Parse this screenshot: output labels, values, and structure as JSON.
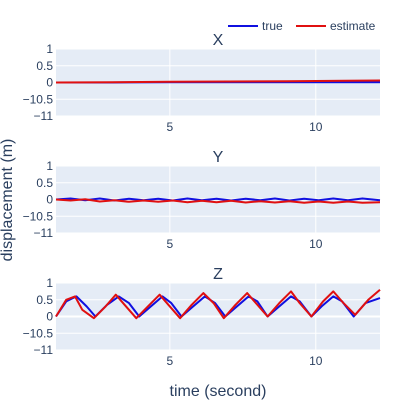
{
  "legend": [
    {
      "label": "true",
      "color": "#1010e0"
    },
    {
      "label": "estimate",
      "color": "#e01010"
    }
  ],
  "chart_data": {
    "type": "line",
    "ylabel": "displacement (m)",
    "xlabel": "time (second)",
    "grid": true,
    "legend_position": "top-right",
    "xlim": [
      1.1,
      12.2
    ],
    "ylim": [
      -1,
      1
    ],
    "xticks": [
      5,
      10
    ],
    "yticks": [
      1,
      0.5,
      0,
      -0.5,
      -1
    ],
    "panels": [
      {
        "title": "X",
        "series": [
          {
            "name": "true",
            "color": "#1010e0",
            "x": [
              1.1,
              3,
              5,
              7,
              9,
              11,
              12.2
            ],
            "y": [
              0,
              0,
              0.01,
              0.01,
              0.01,
              0.01,
              0.01
            ]
          },
          {
            "name": "estimate",
            "color": "#e01010",
            "x": [
              1.1,
              3,
              5,
              7,
              9,
              11,
              12.2
            ],
            "y": [
              0,
              0.01,
              0.02,
              0.03,
              0.04,
              0.05,
              0.06
            ]
          }
        ]
      },
      {
        "title": "Y",
        "series": [
          {
            "name": "true",
            "color": "#1010e0",
            "x": [
              1.1,
              1.6,
              2.1,
              2.6,
              3.1,
              3.6,
              4.1,
              4.6,
              5.1,
              5.6,
              6.1,
              6.6,
              7.1,
              7.6,
              8.1,
              8.6,
              9.1,
              9.6,
              10.1,
              10.6,
              11.1,
              11.6,
              12.2
            ],
            "y": [
              0,
              0.03,
              -0.02,
              0.03,
              -0.03,
              0.02,
              -0.02,
              0.02,
              -0.03,
              0.03,
              -0.02,
              0.02,
              -0.03,
              0.02,
              -0.02,
              0.03,
              -0.03,
              0.02,
              -0.02,
              0.03,
              -0.02,
              0.03,
              -0.02
            ]
          },
          {
            "name": "estimate",
            "color": "#e01010",
            "x": [
              1.1,
              1.6,
              2.1,
              2.6,
              3.1,
              3.6,
              4.1,
              4.6,
              5.1,
              5.6,
              6.1,
              6.6,
              7.1,
              7.6,
              8.1,
              8.6,
              9.1,
              9.6,
              10.1,
              10.6,
              11.1,
              11.6,
              12.2
            ],
            "y": [
              0,
              -0.03,
              0.01,
              -0.06,
              -0.02,
              -0.07,
              -0.03,
              -0.07,
              -0.03,
              -0.08,
              -0.04,
              -0.08,
              -0.04,
              -0.09,
              -0.05,
              -0.09,
              -0.05,
              -0.1,
              -0.06,
              -0.1,
              -0.06,
              -0.1,
              -0.08
            ]
          }
        ]
      },
      {
        "title": "Z",
        "series": [
          {
            "name": "true",
            "color": "#1010e0",
            "x": [
              1.1,
              1.45,
              1.8,
              2.15,
              2.45,
              2.85,
              3.25,
              3.6,
              3.95,
              4.35,
              4.75,
              5.05,
              5.4,
              5.8,
              6.2,
              6.55,
              6.9,
              7.3,
              7.7,
              8.0,
              8.35,
              8.75,
              9.15,
              9.45,
              9.85,
              10.2,
              10.6,
              10.9,
              11.3,
              11.7,
              12.2
            ],
            "y": [
              0,
              0.45,
              0.6,
              0.3,
              0,
              0.35,
              0.6,
              0.4,
              0,
              0.3,
              0.6,
              0.4,
              0,
              0.3,
              0.6,
              0.4,
              0,
              0.3,
              0.6,
              0.45,
              0,
              0.3,
              0.6,
              0.45,
              0,
              0.3,
              0.6,
              0.45,
              0,
              0.4,
              0.55
            ]
          },
          {
            "name": "estimate",
            "color": "#e01010",
            "x": [
              1.1,
              1.45,
              1.75,
              2.0,
              2.4,
              2.8,
              3.15,
              3.45,
              3.85,
              4.25,
              4.65,
              4.95,
              5.35,
              5.75,
              6.15,
              6.5,
              6.85,
              7.25,
              7.65,
              7.95,
              8.35,
              8.75,
              9.15,
              9.45,
              9.85,
              10.25,
              10.6,
              10.95,
              11.35,
              11.8,
              12.2
            ],
            "y": [
              0,
              0.5,
              0.6,
              0.2,
              -0.05,
              0.3,
              0.65,
              0.35,
              -0.05,
              0.3,
              0.65,
              0.35,
              -0.05,
              0.35,
              0.7,
              0.4,
              -0.05,
              0.35,
              0.7,
              0.4,
              0,
              0.4,
              0.75,
              0.4,
              0,
              0.45,
              0.75,
              0.4,
              0.05,
              0.5,
              0.8
            ]
          }
        ]
      }
    ]
  }
}
